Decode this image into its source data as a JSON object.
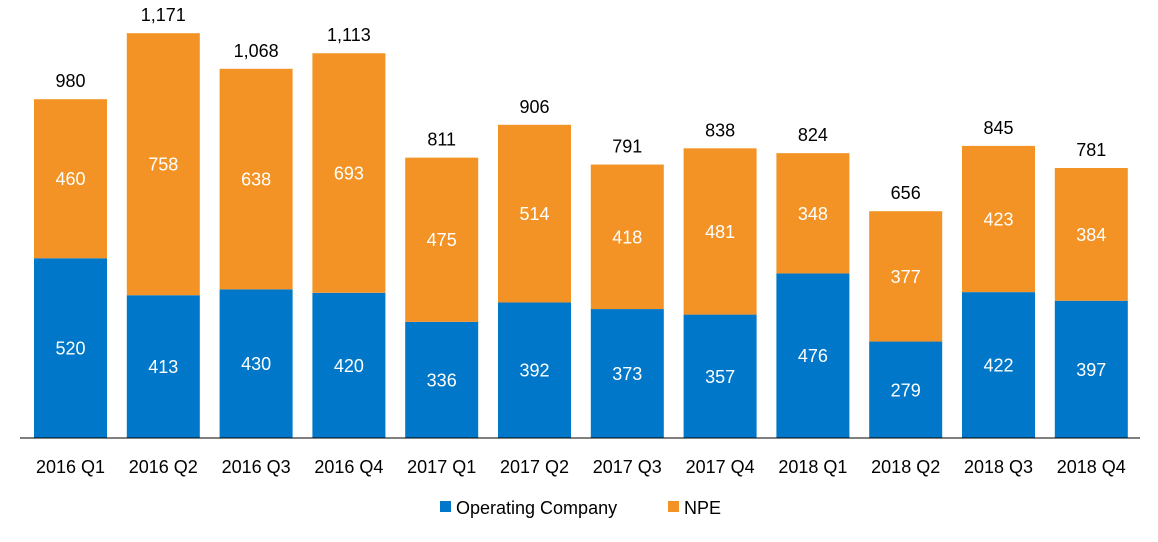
{
  "chart_data": {
    "type": "bar",
    "stacked": true,
    "categories": [
      "2016 Q1",
      "2016 Q2",
      "2016 Q3",
      "2016 Q4",
      "2017 Q1",
      "2017 Q2",
      "2017 Q3",
      "2017 Q4",
      "2018 Q1",
      "2018 Q2",
      "2018 Q3",
      "2018 Q4"
    ],
    "series": [
      {
        "name": "Operating Company",
        "color": "#0077c8",
        "values": [
          520,
          413,
          430,
          420,
          336,
          392,
          373,
          357,
          476,
          279,
          422,
          397
        ]
      },
      {
        "name": "NPE",
        "color": "#f39325",
        "values": [
          460,
          758,
          638,
          693,
          475,
          514,
          418,
          481,
          348,
          377,
          423,
          384
        ]
      }
    ],
    "totals": [
      980,
      1171,
      1068,
      1113,
      811,
      906,
      791,
      838,
      824,
      656,
      845,
      781
    ],
    "total_labels": [
      "980",
      "1,171",
      "1,068",
      "1,113",
      "811",
      "906",
      "791",
      "838",
      "824",
      "656",
      "845",
      "781"
    ],
    "title": "",
    "xlabel": "",
    "ylabel": "",
    "ylim": [
      0,
      1200
    ],
    "grid": false,
    "legend_position": "bottom-center"
  }
}
